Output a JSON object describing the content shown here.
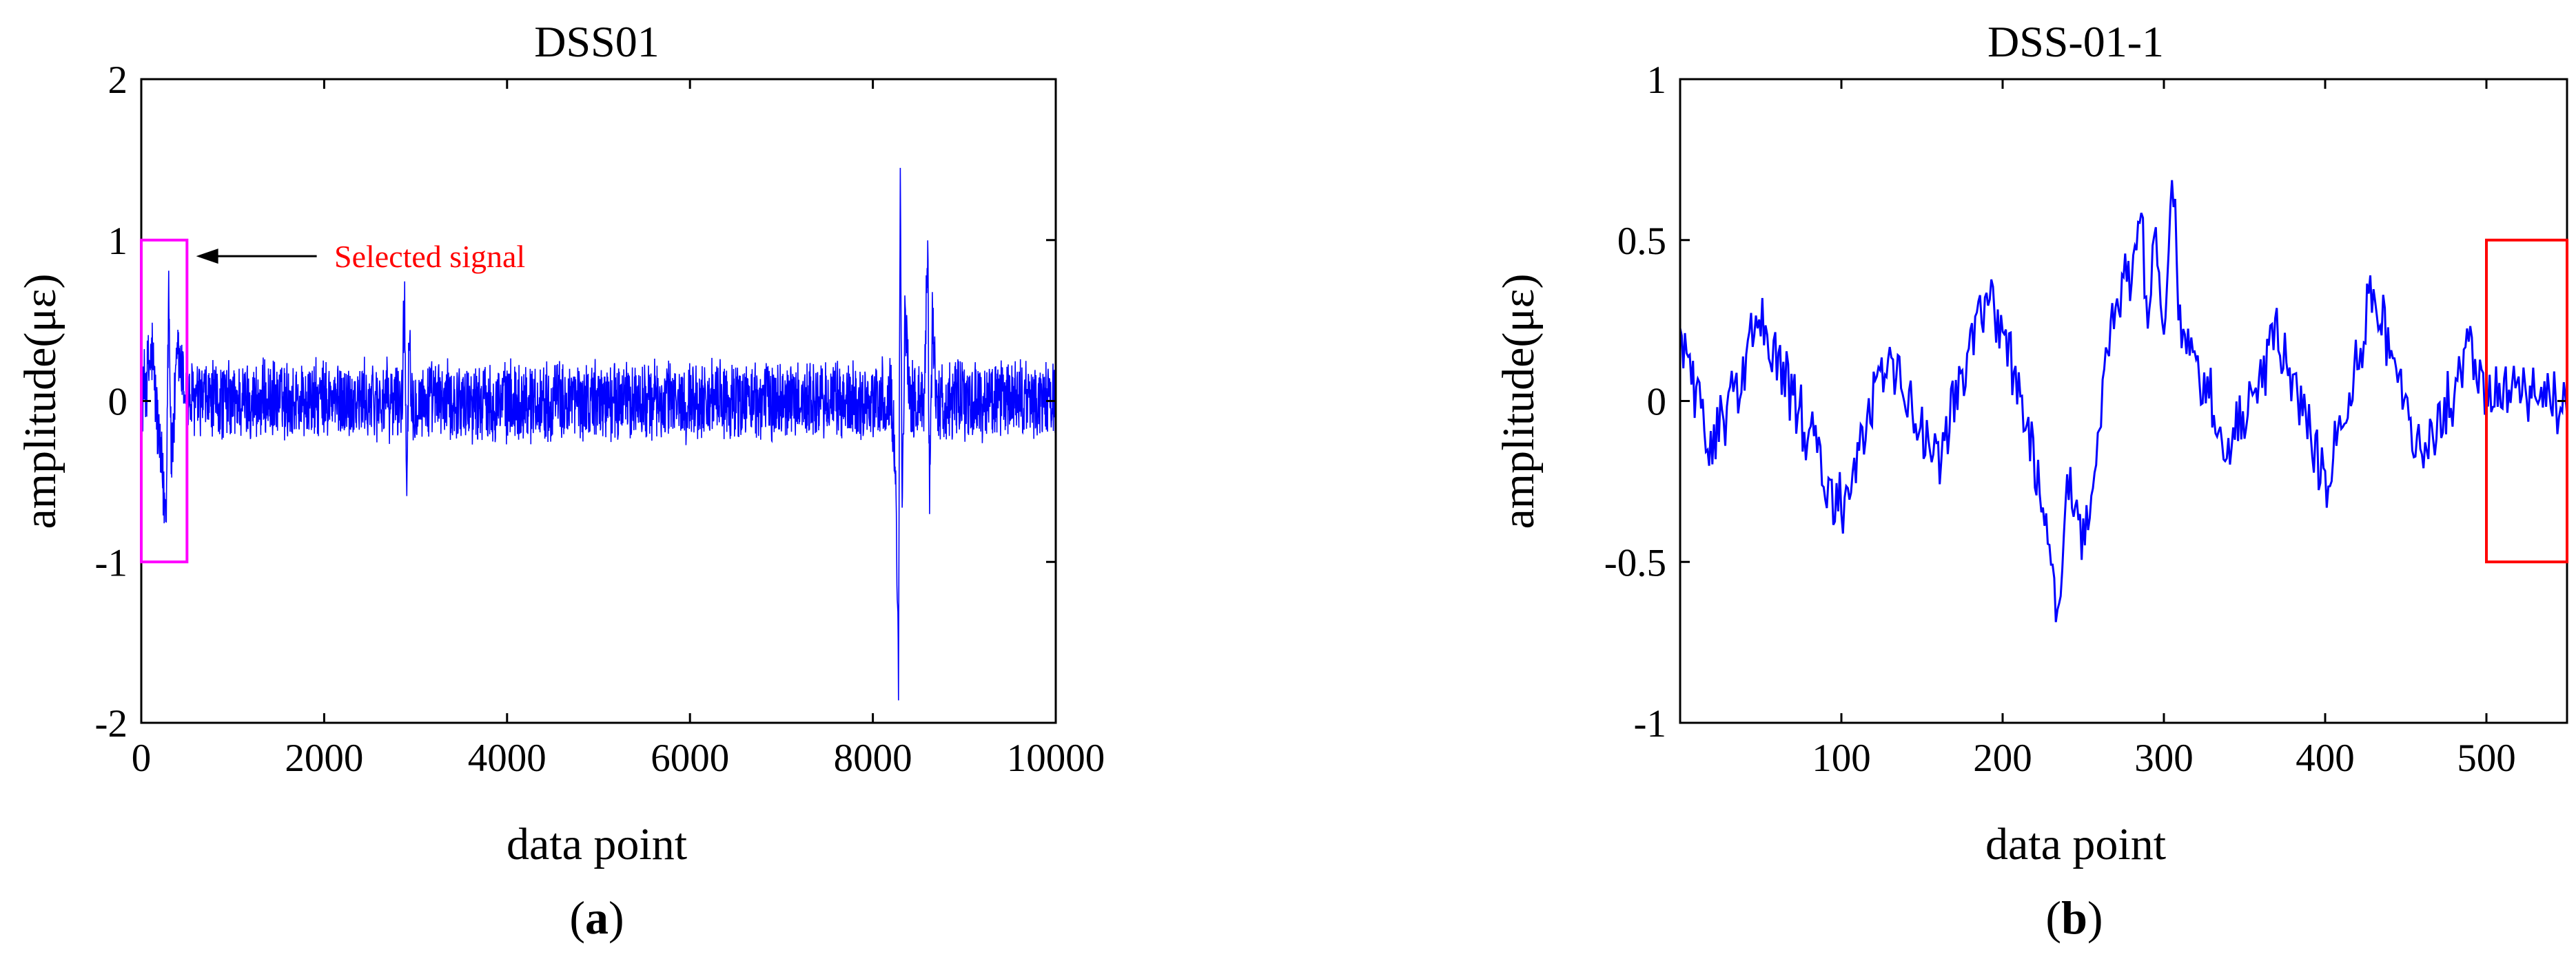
{
  "chart_data": [
    {
      "panel_label": "a",
      "type": "line",
      "title": "DSS01",
      "xlabel": "data point",
      "ylabel": "amplitude(με)",
      "xlim": [
        0,
        10000
      ],
      "ylim": [
        -2,
        2
      ],
      "xticks": [
        0,
        2000,
        4000,
        6000,
        8000,
        10000
      ],
      "yticks": [
        -2,
        -1,
        0,
        1,
        2
      ],
      "grid": false,
      "line_color": "#0000ff",
      "noise_range": [
        -0.4,
        0.4
      ],
      "series": [
        {
          "x": [
            0,
            120,
            200,
            270,
            300,
            330,
            400,
            500,
            2850,
            2880,
            2900,
            2930,
            2960,
            8200,
            8250,
            8280,
            8300,
            8320,
            8350,
            8400,
            8560,
            8600,
            8620,
            8650,
            8700,
            10000
          ],
          "y": [
            0,
            0.3,
            -0.3,
            -0.7,
            0.72,
            -0.4,
            0.3,
            0,
            0,
            0.65,
            -0.55,
            0.5,
            0,
            0,
            -0.4,
            -1.65,
            1.62,
            -0.8,
            0.6,
            0,
            0,
            1.05,
            -0.72,
            0.5,
            0,
            0
          ]
        }
      ],
      "annotations": [
        {
          "type": "box",
          "x0": 0,
          "x1": 500,
          "y0": -1,
          "y1": 1,
          "color": "#ff00ff"
        },
        {
          "type": "arrow",
          "text": "Selected signal",
          "x": 600,
          "y": 0.9,
          "color": "#ff0000"
        }
      ]
    },
    {
      "panel_label": "b",
      "type": "line",
      "title": "DSS-01-1",
      "xlabel": "data point",
      "ylabel": "amplitude(με)",
      "xlim": [
        0,
        550
      ],
      "ylim": [
        -1,
        1
      ],
      "xticks": [
        100,
        200,
        300,
        400,
        500
      ],
      "yticks": [
        -1,
        -0.5,
        0,
        0.5,
        1
      ],
      "grid": false,
      "line_color": "#0000ff",
      "series": [
        {
          "x": [
            0,
            20,
            50,
            80,
            100,
            130,
            160,
            190,
            210,
            225,
            235,
            240,
            250,
            260,
            270,
            280,
            285,
            290,
            295,
            300,
            305,
            310,
            320,
            340,
            370,
            400,
            430,
            460,
            490,
            500,
            520,
            550
          ],
          "y": [
            0.2,
            -0.15,
            0.25,
            -0.1,
            -0.35,
            0.15,
            -0.2,
            0.35,
            0.05,
            -0.3,
            -0.68,
            -0.2,
            -0.42,
            -0.05,
            0.3,
            0.4,
            0.62,
            0.25,
            0.58,
            0.18,
            0.72,
            0.25,
            0.15,
            -0.15,
            0.2,
            -0.25,
            0.35,
            -0.2,
            0.15,
            0.0,
            0.05,
            -0.02
          ]
        }
      ],
      "annotations": [
        {
          "type": "box",
          "x0": 500,
          "x1": 550,
          "y0": -0.5,
          "y1": 0.5,
          "color": "#ff0000"
        }
      ]
    }
  ]
}
